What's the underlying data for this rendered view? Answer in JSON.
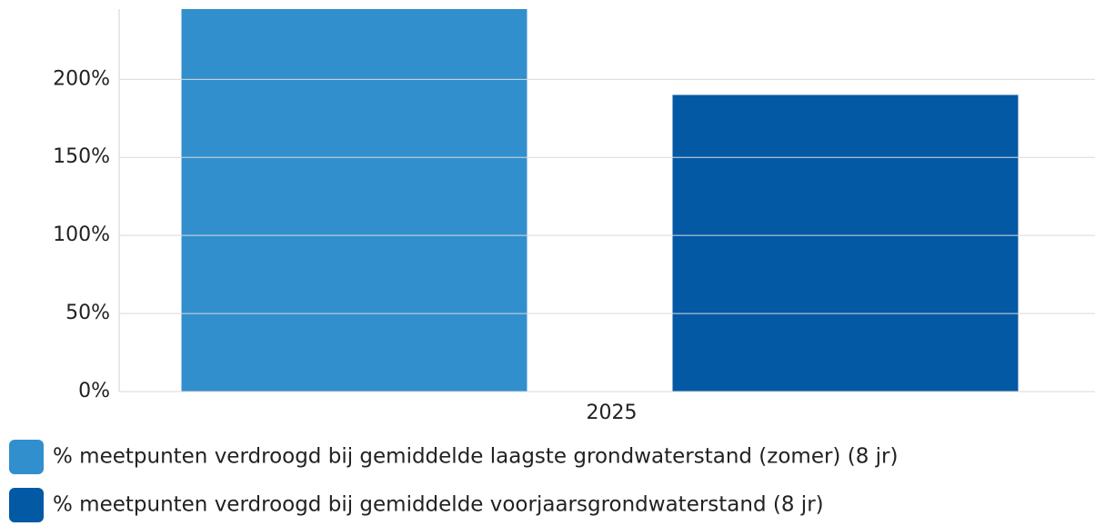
{
  "chart_data": {
    "type": "bar",
    "categories": [
      "2025"
    ],
    "series": [
      {
        "name": "% meetpunten verdroogd bij gemiddelde laagste grondwaterstand (zomer) (8 jr)",
        "color": "#318fcd",
        "values": [
          250
        ]
      },
      {
        "name": "% meetpunten verdroogd bij gemiddelde voorjaarsgrondwaterstand (8 jr)",
        "color": "#0459a5",
        "values": [
          190
        ]
      }
    ],
    "ylim": [
      0,
      245
    ],
    "yticks": [
      {
        "value": 0,
        "label": "0%"
      },
      {
        "value": 50,
        "label": "50%"
      },
      {
        "value": 100,
        "label": "100%"
      },
      {
        "value": 150,
        "label": "150%"
      },
      {
        "value": 200,
        "label": "200%"
      }
    ],
    "grid": true,
    "legend": "bottom"
  }
}
